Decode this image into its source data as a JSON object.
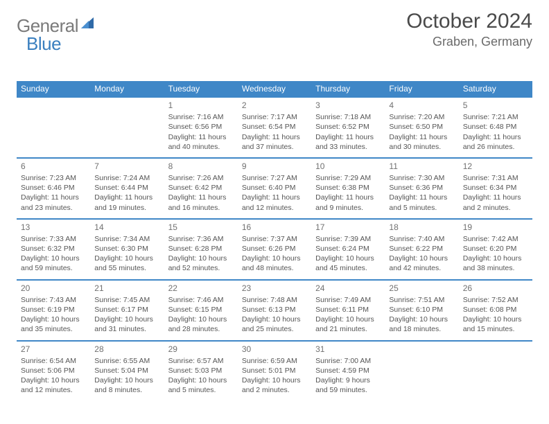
{
  "logo": {
    "general": "General",
    "blue": "Blue"
  },
  "title": "October 2024",
  "location": "Graben, Germany",
  "colors": {
    "header_bg": "#3f87c7",
    "header_text": "#ffffff",
    "row_border": "#3f87c7",
    "body_text": "#555555",
    "daynum": "#707070",
    "title_color": "#4a4a4a",
    "location_color": "#6a6a6a",
    "logo_general": "#7a7a7a",
    "logo_blue": "#3a7fbf",
    "background": "#ffffff"
  },
  "typography": {
    "title_fontsize": 30,
    "location_fontsize": 18,
    "header_fontsize": 12,
    "cell_fontsize": 10.5,
    "daynum_fontsize": 12
  },
  "weekdays": [
    "Sunday",
    "Monday",
    "Tuesday",
    "Wednesday",
    "Thursday",
    "Friday",
    "Saturday"
  ],
  "weeks": [
    [
      null,
      null,
      {
        "n": "1",
        "sr": "Sunrise: 7:16 AM",
        "ss": "Sunset: 6:56 PM",
        "dl": "Daylight: 11 hours and 40 minutes."
      },
      {
        "n": "2",
        "sr": "Sunrise: 7:17 AM",
        "ss": "Sunset: 6:54 PM",
        "dl": "Daylight: 11 hours and 37 minutes."
      },
      {
        "n": "3",
        "sr": "Sunrise: 7:18 AM",
        "ss": "Sunset: 6:52 PM",
        "dl": "Daylight: 11 hours and 33 minutes."
      },
      {
        "n": "4",
        "sr": "Sunrise: 7:20 AM",
        "ss": "Sunset: 6:50 PM",
        "dl": "Daylight: 11 hours and 30 minutes."
      },
      {
        "n": "5",
        "sr": "Sunrise: 7:21 AM",
        "ss": "Sunset: 6:48 PM",
        "dl": "Daylight: 11 hours and 26 minutes."
      }
    ],
    [
      {
        "n": "6",
        "sr": "Sunrise: 7:23 AM",
        "ss": "Sunset: 6:46 PM",
        "dl": "Daylight: 11 hours and 23 minutes."
      },
      {
        "n": "7",
        "sr": "Sunrise: 7:24 AM",
        "ss": "Sunset: 6:44 PM",
        "dl": "Daylight: 11 hours and 19 minutes."
      },
      {
        "n": "8",
        "sr": "Sunrise: 7:26 AM",
        "ss": "Sunset: 6:42 PM",
        "dl": "Daylight: 11 hours and 16 minutes."
      },
      {
        "n": "9",
        "sr": "Sunrise: 7:27 AM",
        "ss": "Sunset: 6:40 PM",
        "dl": "Daylight: 11 hours and 12 minutes."
      },
      {
        "n": "10",
        "sr": "Sunrise: 7:29 AM",
        "ss": "Sunset: 6:38 PM",
        "dl": "Daylight: 11 hours and 9 minutes."
      },
      {
        "n": "11",
        "sr": "Sunrise: 7:30 AM",
        "ss": "Sunset: 6:36 PM",
        "dl": "Daylight: 11 hours and 5 minutes."
      },
      {
        "n": "12",
        "sr": "Sunrise: 7:31 AM",
        "ss": "Sunset: 6:34 PM",
        "dl": "Daylight: 11 hours and 2 minutes."
      }
    ],
    [
      {
        "n": "13",
        "sr": "Sunrise: 7:33 AM",
        "ss": "Sunset: 6:32 PM",
        "dl": "Daylight: 10 hours and 59 minutes."
      },
      {
        "n": "14",
        "sr": "Sunrise: 7:34 AM",
        "ss": "Sunset: 6:30 PM",
        "dl": "Daylight: 10 hours and 55 minutes."
      },
      {
        "n": "15",
        "sr": "Sunrise: 7:36 AM",
        "ss": "Sunset: 6:28 PM",
        "dl": "Daylight: 10 hours and 52 minutes."
      },
      {
        "n": "16",
        "sr": "Sunrise: 7:37 AM",
        "ss": "Sunset: 6:26 PM",
        "dl": "Daylight: 10 hours and 48 minutes."
      },
      {
        "n": "17",
        "sr": "Sunrise: 7:39 AM",
        "ss": "Sunset: 6:24 PM",
        "dl": "Daylight: 10 hours and 45 minutes."
      },
      {
        "n": "18",
        "sr": "Sunrise: 7:40 AM",
        "ss": "Sunset: 6:22 PM",
        "dl": "Daylight: 10 hours and 42 minutes."
      },
      {
        "n": "19",
        "sr": "Sunrise: 7:42 AM",
        "ss": "Sunset: 6:20 PM",
        "dl": "Daylight: 10 hours and 38 minutes."
      }
    ],
    [
      {
        "n": "20",
        "sr": "Sunrise: 7:43 AM",
        "ss": "Sunset: 6:19 PM",
        "dl": "Daylight: 10 hours and 35 minutes."
      },
      {
        "n": "21",
        "sr": "Sunrise: 7:45 AM",
        "ss": "Sunset: 6:17 PM",
        "dl": "Daylight: 10 hours and 31 minutes."
      },
      {
        "n": "22",
        "sr": "Sunrise: 7:46 AM",
        "ss": "Sunset: 6:15 PM",
        "dl": "Daylight: 10 hours and 28 minutes."
      },
      {
        "n": "23",
        "sr": "Sunrise: 7:48 AM",
        "ss": "Sunset: 6:13 PM",
        "dl": "Daylight: 10 hours and 25 minutes."
      },
      {
        "n": "24",
        "sr": "Sunrise: 7:49 AM",
        "ss": "Sunset: 6:11 PM",
        "dl": "Daylight: 10 hours and 21 minutes."
      },
      {
        "n": "25",
        "sr": "Sunrise: 7:51 AM",
        "ss": "Sunset: 6:10 PM",
        "dl": "Daylight: 10 hours and 18 minutes."
      },
      {
        "n": "26",
        "sr": "Sunrise: 7:52 AM",
        "ss": "Sunset: 6:08 PM",
        "dl": "Daylight: 10 hours and 15 minutes."
      }
    ],
    [
      {
        "n": "27",
        "sr": "Sunrise: 6:54 AM",
        "ss": "Sunset: 5:06 PM",
        "dl": "Daylight: 10 hours and 12 minutes."
      },
      {
        "n": "28",
        "sr": "Sunrise: 6:55 AM",
        "ss": "Sunset: 5:04 PM",
        "dl": "Daylight: 10 hours and 8 minutes."
      },
      {
        "n": "29",
        "sr": "Sunrise: 6:57 AM",
        "ss": "Sunset: 5:03 PM",
        "dl": "Daylight: 10 hours and 5 minutes."
      },
      {
        "n": "30",
        "sr": "Sunrise: 6:59 AM",
        "ss": "Sunset: 5:01 PM",
        "dl": "Daylight: 10 hours and 2 minutes."
      },
      {
        "n": "31",
        "sr": "Sunrise: 7:00 AM",
        "ss": "Sunset: 4:59 PM",
        "dl": "Daylight: 9 hours and 59 minutes."
      },
      null,
      null
    ]
  ]
}
